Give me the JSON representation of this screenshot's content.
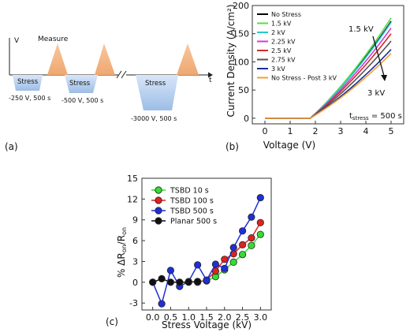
{
  "chart_data": [
    {
      "panel": "(a)",
      "type": "diagram",
      "axis_y": "V",
      "axis_x": "t",
      "measure_label": "Measure",
      "stress_label": "Stress",
      "pulses": [
        {
          "label": "-250 V, 500 s"
        },
        {
          "label": "-500 V, 500 s"
        },
        {
          "label": "-3000 V, 500 s"
        }
      ]
    },
    {
      "panel": "(b)",
      "type": "line",
      "xlabel": "Voltage (V)",
      "ylabel": "Current Density (A/cm²)",
      "xlim": [
        -0.5,
        5.5
      ],
      "ylim": [
        -10,
        200
      ],
      "xticks": [
        0,
        1,
        2,
        3,
        4,
        5
      ],
      "yticks": [
        0,
        50,
        100,
        150,
        200
      ],
      "legend_position": "top-left",
      "annotation_top": "1.5 kV",
      "annotation_bottom": "3 kV",
      "tstress_main": "t",
      "tstress_sub": "stress",
      "tstress_value": " = 500 s",
      "threshold_v": 1.8,
      "series": [
        {
          "name": "No Stress",
          "color": "#000000",
          "end_value": 172
        },
        {
          "name": "1.5 kV",
          "color": "#55dd44",
          "end_value": 178
        },
        {
          "name": "2 kV",
          "color": "#22cccc",
          "end_value": 170
        },
        {
          "name": "2.25 kV",
          "color": "#d63bd6",
          "end_value": 160
        },
        {
          "name": "2.5 kV",
          "color": "#d12b2b",
          "end_value": 150
        },
        {
          "name": "2.75 kV",
          "color": "#555555",
          "end_value": 137
        },
        {
          "name": "3 kV",
          "color": "#1d2c9a",
          "end_value": 122
        },
        {
          "name": "No Stress - Post 3 kV",
          "color": "#f0a030",
          "end_value": 115
        }
      ]
    },
    {
      "panel": "(c)",
      "type": "line",
      "xlabel": "Stress Voltage (kV)",
      "ylabel_main": "% ΔR",
      "ylabel_sub1": "on",
      "ylabel_mid": "/R",
      "ylabel_sub2": "on",
      "xlim": [
        -0.3,
        3.3
      ],
      "ylim": [
        -4,
        15
      ],
      "xticks": [
        "0.0",
        "0.5",
        "1.0",
        "1.5",
        "2.0",
        "2.5",
        "3.0"
      ],
      "yticks": [
        -3,
        0,
        3,
        6,
        9,
        12,
        15
      ],
      "legend_position": "top-left",
      "series": [
        {
          "name": "TSBD 10 s",
          "color": "#33dd33",
          "x": [
            1.25,
            1.5,
            1.75,
            2.0,
            2.25,
            2.5,
            2.75,
            3.0
          ],
          "y": [
            0.1,
            0.2,
            0.8,
            1.8,
            2.9,
            4.0,
            5.3,
            6.9
          ]
        },
        {
          "name": "TSBD 100 s",
          "color": "#dd2222",
          "x": [
            1.25,
            1.5,
            1.75,
            2.0,
            2.25,
            2.5,
            2.75,
            3.0
          ],
          "y": [
            0.0,
            0.3,
            1.6,
            3.3,
            4.1,
            5.4,
            6.4,
            8.6
          ]
        },
        {
          "name": "TSBD 500 s",
          "color": "#1f2fd6",
          "x": [
            0.0,
            0.25,
            0.5,
            0.75,
            1.0,
            1.25,
            1.5,
            1.75,
            2.0,
            2.25,
            2.5,
            2.75,
            3.0
          ],
          "y": [
            0.0,
            -3.1,
            1.7,
            -0.6,
            0.1,
            2.5,
            0.3,
            2.6,
            2.0,
            5.0,
            7.4,
            9.4,
            12.2
          ]
        },
        {
          "name": "Planar 500 s",
          "color": "#111111",
          "x": [
            0.0,
            0.25,
            0.5,
            0.75,
            1.0,
            1.25
          ],
          "y": [
            0.0,
            0.5,
            0.0,
            0.0,
            0.0,
            0.1
          ]
        }
      ]
    }
  ]
}
